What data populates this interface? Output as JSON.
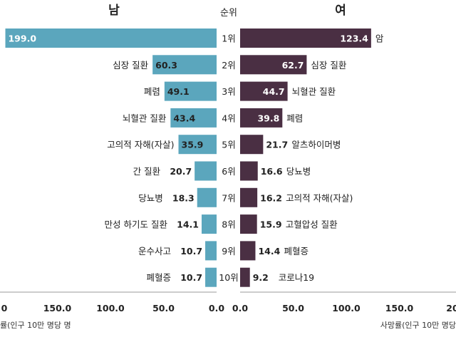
{
  "chart_data": {
    "type": "bar",
    "header": {
      "male": "남",
      "rank": "순위",
      "female": "여"
    },
    "ranks": [
      "1위",
      "2위",
      "3위",
      "4위",
      "5위",
      "6위",
      "7위",
      "8위",
      "9위",
      "10위"
    ],
    "xlabel_left": "률(인구 10만 명당 명",
    "xlabel_right": "사망률(인구 10만 명당",
    "xticks_left": [
      "0",
      "150.0",
      "100.0",
      "50.0",
      "0.0"
    ],
    "xticks_right": [
      "0.0",
      "50.0",
      "100.0",
      "150.0",
      "20"
    ],
    "xlim": [
      0,
      200
    ],
    "series": [
      {
        "name": "남",
        "color": "#5ba6bd",
        "categories": [
          "",
          "심장 질환",
          "폐렴",
          "뇌혈관 질환",
          "고의적 자해(자살)",
          "간 질환",
          "당뇨병",
          "만성 하기도 질환",
          "운수사고",
          "폐혈증"
        ],
        "values": [
          199.0,
          60.3,
          49.1,
          43.4,
          35.9,
          20.7,
          18.3,
          14.1,
          10.7,
          10.7
        ],
        "value_labels": [
          "199.0",
          "60.3",
          "49.1",
          "43.4",
          "35.9",
          "20.7",
          "18.3",
          "14.1",
          "10.7",
          "10.7"
        ]
      },
      {
        "name": "여",
        "color": "#4a2f43",
        "categories": [
          "암",
          "심장 질환",
          "뇌혈관 질환",
          "폐렴",
          "알츠하이머병",
          "당뇨병",
          "고의적 자해(자살)",
          "고혈압성 질환",
          "폐혈증",
          "코로나19"
        ],
        "values": [
          123.4,
          62.7,
          44.7,
          39.8,
          21.7,
          16.6,
          16.2,
          15.9,
          14.4,
          9.2
        ],
        "value_labels": [
          "123.4",
          "62.7",
          "44.7",
          "39.8",
          "21.7",
          "16.6",
          "16.2",
          "15.9",
          "14.4",
          "9.2"
        ]
      }
    ]
  }
}
